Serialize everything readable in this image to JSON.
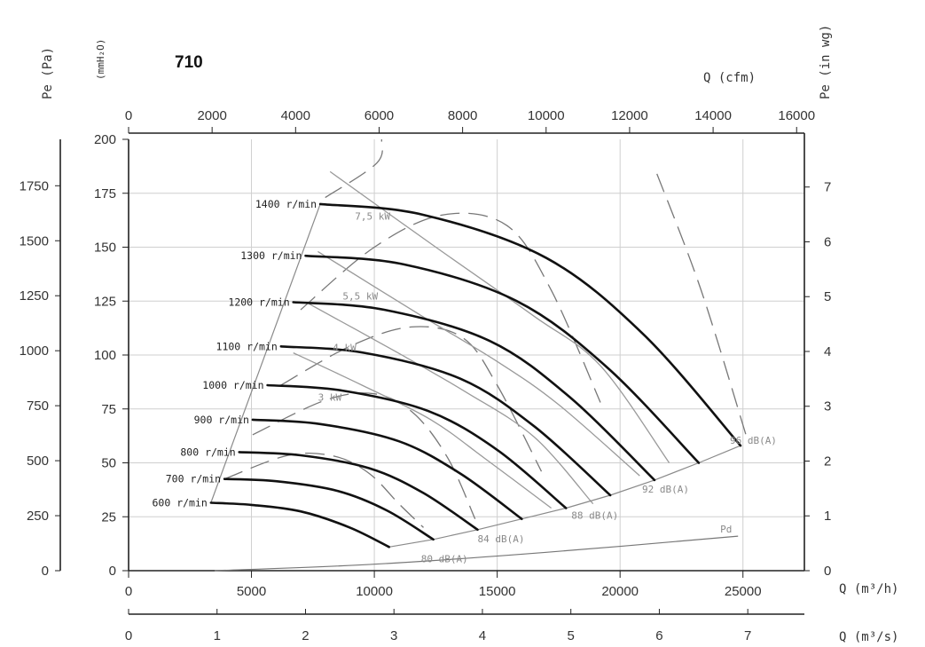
{
  "chart_data": {
    "type": "line",
    "title": "710",
    "axes": {
      "bottom_primary": {
        "unit_label": "Q (m³/h)",
        "range": [
          0,
          27500
        ],
        "ticks": [
          0,
          5000,
          10000,
          15000,
          20000,
          25000
        ],
        "tick_labels": [
          "0",
          "5000",
          "10000",
          "15000",
          "20000",
          "25000"
        ]
      },
      "bottom_secondary": {
        "unit_label": "Q (m³/s)",
        "range": [
          0,
          7.64
        ],
        "ticks": [
          0,
          1,
          2,
          3,
          4,
          5,
          6,
          7
        ],
        "tick_labels": [
          "0",
          "1",
          "2",
          "3",
          "4",
          "5",
          "6",
          "7"
        ]
      },
      "top": {
        "unit_label": "Q (cfm)",
        "range": [
          0,
          16186
        ],
        "ticks": [
          0,
          2000,
          4000,
          6000,
          8000,
          10000,
          12000,
          14000,
          16000
        ],
        "tick_labels": [
          "0",
          "2000",
          "4000",
          "6000",
          "8000",
          "10000",
          "12000",
          "14000",
          "16000"
        ]
      },
      "left_outer": {
        "unit_label": "Pe (Pa)",
        "range": [
          0,
          1961
        ],
        "ticks": [
          0,
          250,
          500,
          750,
          1000,
          1250,
          1500,
          1750
        ],
        "tick_labels": [
          "0",
          "250",
          "500",
          "750",
          "1000",
          "1250",
          "1500",
          "1750"
        ]
      },
      "left_inner": {
        "unit_label": "(mmH₂O)",
        "range": [
          0,
          200
        ],
        "ticks": [
          0,
          25,
          50,
          75,
          100,
          125,
          150,
          175,
          200
        ],
        "tick_labels": [
          "0",
          "25",
          "50",
          "75",
          "100",
          "125",
          "150",
          "175",
          "200"
        ]
      },
      "right": {
        "unit_label": "Pe (in wg)",
        "range": [
          0,
          7.87
        ],
        "ticks": [
          0,
          1,
          2,
          3,
          4,
          5,
          6,
          7
        ],
        "tick_labels": [
          "0",
          "1",
          "2",
          "3",
          "4",
          "5",
          "6",
          "7"
        ]
      }
    },
    "grid": true,
    "speed_curves": [
      {
        "name": "600 r/min",
        "points": [
          [
            3350,
            31.5
          ],
          [
            5000,
            30.5
          ],
          [
            7000,
            27.5
          ],
          [
            9000,
            20
          ],
          [
            10600,
            11
          ]
        ]
      },
      {
        "name": "700 r/min",
        "points": [
          [
            3900,
            42.5
          ],
          [
            6000,
            41.5
          ],
          [
            8500,
            37
          ],
          [
            10500,
            28
          ],
          [
            12400,
            14.5
          ]
        ]
      },
      {
        "name": "800 r/min",
        "points": [
          [
            4500,
            55
          ],
          [
            7000,
            53.5
          ],
          [
            9800,
            47.5
          ],
          [
            12000,
            36
          ],
          [
            14200,
            19
          ]
        ]
      },
      {
        "name": "900 r/min",
        "points": [
          [
            5050,
            70
          ],
          [
            7800,
            68
          ],
          [
            11000,
            60
          ],
          [
            13500,
            45
          ],
          [
            16000,
            24
          ]
        ]
      },
      {
        "name": "1000 r/min",
        "points": [
          [
            5650,
            86
          ],
          [
            8700,
            83.5
          ],
          [
            12200,
            74
          ],
          [
            15000,
            56
          ],
          [
            17800,
            29
          ]
        ]
      },
      {
        "name": "1100 r/min",
        "points": [
          [
            6200,
            104
          ],
          [
            9600,
            101
          ],
          [
            13500,
            89
          ],
          [
            16500,
            67
          ],
          [
            19600,
            35
          ]
        ]
      },
      {
        "name": "1200 r/min",
        "points": [
          [
            6700,
            124.5
          ],
          [
            10400,
            121
          ],
          [
            14700,
            106.5
          ],
          [
            18000,
            80
          ],
          [
            21400,
            42
          ]
        ]
      },
      {
        "name": "1300 r/min",
        "points": [
          [
            7200,
            146
          ],
          [
            11200,
            142
          ],
          [
            15800,
            125
          ],
          [
            19500,
            94
          ],
          [
            23200,
            50
          ]
        ]
      },
      {
        "name": "1400 r/min",
        "points": [
          [
            7800,
            170
          ],
          [
            12000,
            165
          ],
          [
            17000,
            145
          ],
          [
            21000,
            109
          ],
          [
            24900,
            58
          ]
        ]
      }
    ],
    "power_curves": [
      {
        "name": "7,5 kW",
        "label": "7,5 kW",
        "points": [
          [
            8200,
            185
          ],
          [
            12500,
            150
          ],
          [
            16500,
            118
          ],
          [
            19200,
            95
          ],
          [
            22000,
            50
          ]
        ]
      },
      {
        "name": "5,5 kW",
        "label": "5,5 kW",
        "points": [
          [
            7700,
            148
          ],
          [
            11800,
            119
          ],
          [
            15000,
            97
          ],
          [
            17500,
            77
          ],
          [
            20800,
            44
          ]
        ]
      },
      {
        "name": "4 kW",
        "label": "4 kW",
        "points": [
          [
            7300,
            124
          ],
          [
            10800,
            102
          ],
          [
            13700,
            83
          ],
          [
            16500,
            62
          ],
          [
            18900,
            31
          ]
        ]
      },
      {
        "name": "3 kW",
        "label": "3 kW",
        "points": [
          [
            6700,
            101
          ],
          [
            9500,
            86
          ],
          [
            12300,
            70
          ],
          [
            14500,
            52
          ],
          [
            17200,
            29
          ]
        ]
      }
    ],
    "noise_curves": [
      {
        "name": "80 dB(A)",
        "label": "80 dB(A)",
        "points": [
          [
            10600,
            11
          ],
          [
            12400,
            14.5
          ],
          [
            14200,
            19
          ]
        ]
      },
      {
        "name": "84 dB(A)",
        "label": "84 dB(A)",
        "points": [
          [
            14200,
            19
          ],
          [
            16000,
            24
          ],
          [
            17800,
            29
          ]
        ]
      },
      {
        "name": "88 dB(A)",
        "label": "88 dB(A)",
        "points": [
          [
            17800,
            29
          ],
          [
            19600,
            35
          ],
          [
            21400,
            42
          ]
        ]
      },
      {
        "name": "92 dB(A)",
        "label": "92 dB(A)",
        "points": [
          [
            21400,
            42
          ],
          [
            23200,
            50
          ],
          [
            24900,
            58
          ]
        ]
      },
      {
        "name": "96 dB(A)",
        "label": "96 dB(A)",
        "points": [
          [
            24900,
            58
          ]
        ]
      }
    ],
    "dashed_limit_curves": [
      {
        "points": [
          [
            3900,
            42.5
          ],
          [
            6500,
            53.5
          ],
          [
            8400,
            53
          ],
          [
            9800,
            45
          ],
          [
            11000,
            31
          ],
          [
            12000,
            20
          ]
        ]
      },
      {
        "points": [
          [
            5050,
            63
          ],
          [
            8000,
            79
          ],
          [
            10000,
            82
          ],
          [
            11600,
            73
          ],
          [
            13000,
            52
          ],
          [
            14100,
            24
          ]
        ]
      },
      {
        "points": [
          [
            6200,
            86
          ],
          [
            9000,
            104
          ],
          [
            11500,
            113
          ],
          [
            13600,
            108
          ],
          [
            15000,
            86
          ],
          [
            16800,
            46
          ]
        ]
      },
      {
        "points": [
          [
            7000,
            121
          ],
          [
            10000,
            150
          ],
          [
            12800,
            165
          ],
          [
            15400,
            160
          ],
          [
            17200,
            130
          ],
          [
            19200,
            78
          ]
        ]
      },
      {
        "points": [
          [
            8000,
            173
          ],
          [
            10100,
            189
          ],
          [
            10300,
            200
          ]
        ]
      },
      {
        "points": [
          [
            21500,
            184
          ],
          [
            23300,
            130
          ],
          [
            25200,
            60
          ]
        ]
      }
    ],
    "envelope_line": [
      [
        3350,
        31.5
      ],
      [
        7800,
        170
      ]
    ],
    "pd_curve": {
      "name": "Pd",
      "label": "Pd",
      "points": [
        [
          3500,
          0
        ],
        [
          10000,
          3
        ],
        [
          17000,
          8.5
        ],
        [
          24800,
          16
        ]
      ]
    }
  }
}
